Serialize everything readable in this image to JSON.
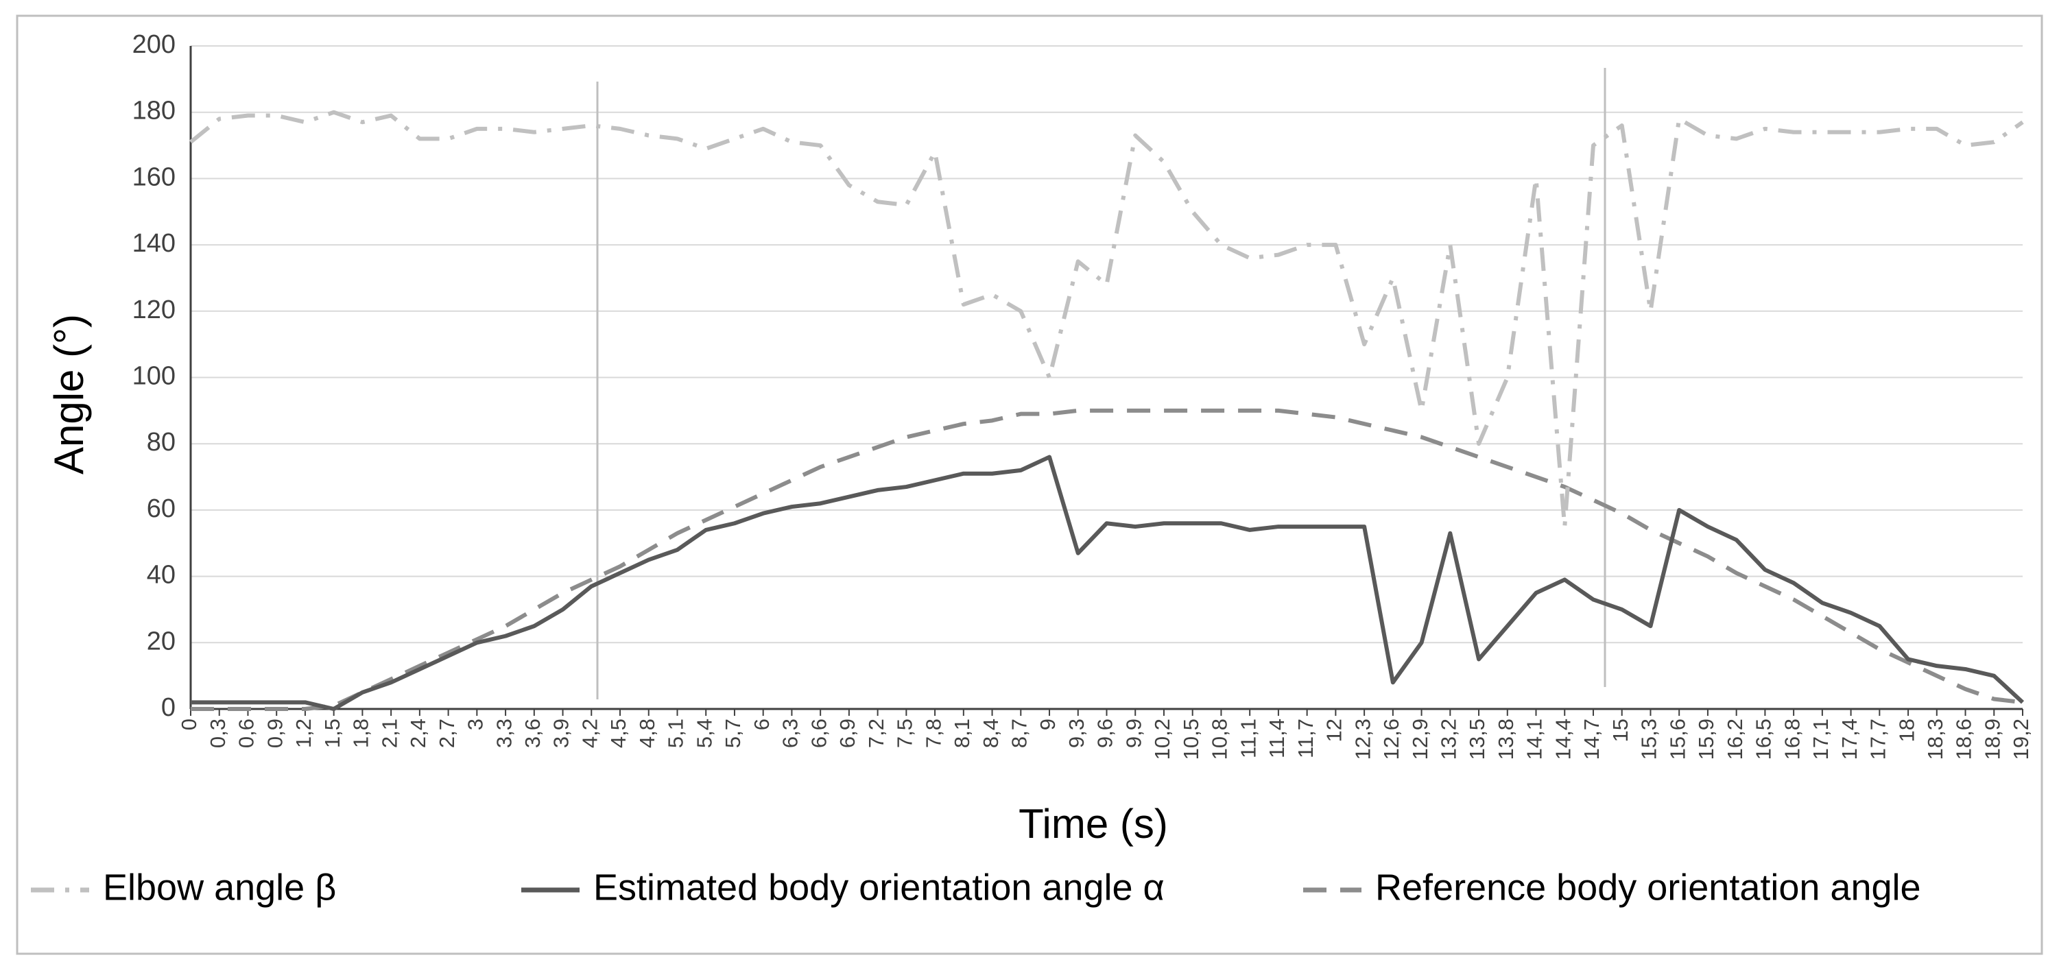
{
  "chart_data": {
    "type": "line",
    "y_label": "Angle (°)",
    "x_label": "Time (s)",
    "x": [
      0,
      0.3,
      0.6,
      0.9,
      1.2,
      1.5,
      1.8,
      2.1,
      2.4,
      2.7,
      3,
      3.3,
      3.6,
      3.9,
      4.2,
      4.5,
      4.8,
      5.1,
      5.4,
      5.7,
      6,
      6.3,
      6.6,
      6.9,
      7.2,
      7.5,
      7.8,
      8.1,
      8.4,
      8.7,
      9,
      9.3,
      9.6,
      9.9,
      10.2,
      10.5,
      10.8,
      11.1,
      11.4,
      11.7,
      12,
      12.3,
      12.6,
      12.9,
      13.2,
      13.5,
      13.8,
      14.1,
      14.4,
      14.7,
      15,
      15.3,
      15.6,
      15.9,
      16.2,
      16.5,
      16.8,
      17.1,
      17.4,
      17.7,
      18,
      18.3,
      18.6,
      18.9,
      19.2
    ],
    "series": [
      {
        "name": "Elbow angle β",
        "color": "#c0c0c0",
        "dash": "dashdot",
        "values": [
          171,
          178,
          179,
          179,
          177,
          180,
          177,
          179,
          172,
          172,
          175,
          175,
          174,
          175,
          176,
          175,
          173,
          172,
          169,
          172,
          175,
          171,
          170,
          158,
          153,
          152,
          168,
          122,
          125,
          120,
          100,
          135,
          128,
          173,
          165,
          150,
          140,
          136,
          137,
          140,
          140,
          110,
          130,
          90,
          140,
          80,
          100,
          160,
          55,
          170,
          176,
          120,
          178,
          173,
          172,
          175,
          174,
          174,
          174,
          174,
          175,
          175,
          170,
          171,
          177
        ]
      },
      {
        "name": "Estimated body orientation angle α",
        "color": "#595959",
        "dash": "solid",
        "values": [
          2,
          2,
          2,
          2,
          2,
          0,
          5,
          8,
          12,
          16,
          20,
          22,
          25,
          30,
          37,
          41,
          45,
          48,
          54,
          56,
          59,
          61,
          62,
          64,
          66,
          67,
          69,
          71,
          71,
          72,
          76,
          47,
          56,
          55,
          56,
          56,
          56,
          54,
          55,
          55,
          55,
          55,
          8,
          20,
          53,
          15,
          25,
          35,
          39,
          33,
          30,
          25,
          60,
          55,
          51,
          42,
          38,
          32,
          29,
          25,
          15,
          13,
          12,
          10,
          2
        ]
      },
      {
        "name": "Reference body orientation angle",
        "color": "#8c8c8c",
        "dash": "dashed",
        "values": [
          0,
          0,
          0,
          0,
          0,
          1,
          5,
          9,
          13,
          17,
          21,
          25,
          30,
          35,
          39,
          43,
          48,
          53,
          57,
          61,
          65,
          69,
          73,
          76,
          79,
          82,
          84,
          86,
          87,
          89,
          89,
          90,
          90,
          90,
          90,
          90,
          90,
          90,
          90,
          89,
          88,
          86,
          84,
          82,
          79,
          76,
          73,
          70,
          67,
          63,
          59,
          54,
          50,
          46,
          41,
          37,
          33,
          28,
          23,
          18,
          14,
          10,
          6,
          3,
          2
        ]
      }
    ],
    "xlim": [
      0,
      19.2
    ],
    "xticks": [
      {
        "value": 0,
        "label": "0"
      },
      {
        "value": 0.3,
        "label": "0,3"
      },
      {
        "value": 0.6,
        "label": "0,6"
      },
      {
        "value": 0.9,
        "label": "0,9"
      },
      {
        "value": 1.2,
        "label": "1,2"
      },
      {
        "value": 1.5,
        "label": "1,5"
      },
      {
        "value": 1.8,
        "label": "1,8"
      },
      {
        "value": 2.1,
        "label": "2,1"
      },
      {
        "value": 2.4,
        "label": "2,4"
      },
      {
        "value": 2.7,
        "label": "2,7"
      },
      {
        "value": 3,
        "label": "3"
      },
      {
        "value": 3.3,
        "label": "3,3"
      },
      {
        "value": 3.6,
        "label": "3,6"
      },
      {
        "value": 3.9,
        "label": "3,9"
      },
      {
        "value": 4.2,
        "label": "4,2"
      },
      {
        "value": 4.5,
        "label": "4,5"
      },
      {
        "value": 4.8,
        "label": "4,8"
      },
      {
        "value": 5.1,
        "label": "5,1"
      },
      {
        "value": 5.4,
        "label": "5,4"
      },
      {
        "value": 5.7,
        "label": "5,7"
      },
      {
        "value": 6,
        "label": "6"
      },
      {
        "value": 6.3,
        "label": "6,3"
      },
      {
        "value": 6.6,
        "label": "6,6"
      },
      {
        "value": 6.9,
        "label": "6,9"
      },
      {
        "value": 7.2,
        "label": "7,2"
      },
      {
        "value": 7.5,
        "label": "7,5"
      },
      {
        "value": 7.8,
        "label": "7,8"
      },
      {
        "value": 8.1,
        "label": "8,1"
      },
      {
        "value": 8.4,
        "label": "8,4"
      },
      {
        "value": 8.7,
        "label": "8,7"
      },
      {
        "value": 9,
        "label": "9"
      },
      {
        "value": 9.3,
        "label": "9,3"
      },
      {
        "value": 9.6,
        "label": "9,6"
      },
      {
        "value": 9.9,
        "label": "9,9"
      },
      {
        "value": 10.2,
        "label": "10,2"
      },
      {
        "value": 10.5,
        "label": "10,5"
      },
      {
        "value": 10.8,
        "label": "10,8"
      },
      {
        "value": 11.1,
        "label": "11,1"
      },
      {
        "value": 11.4,
        "label": "11,4"
      },
      {
        "value": 11.7,
        "label": "11,7"
      },
      {
        "value": 12,
        "label": "12"
      },
      {
        "value": 12.3,
        "label": "12,3"
      },
      {
        "value": 12.6,
        "label": "12,6"
      },
      {
        "value": 12.9,
        "label": "12,9"
      },
      {
        "value": 13.2,
        "label": "13,2"
      },
      {
        "value": 13.5,
        "label": "13,5"
      },
      {
        "value": 13.8,
        "label": "13,8"
      },
      {
        "value": 14.1,
        "label": "14,1"
      },
      {
        "value": 14.4,
        "label": "14,4"
      },
      {
        "value": 14.7,
        "label": "14,7"
      },
      {
        "value": 15,
        "label": "15"
      },
      {
        "value": 15.3,
        "label": "15,3"
      },
      {
        "value": 15.6,
        "label": "15,6"
      },
      {
        "value": 15.9,
        "label": "15,9"
      },
      {
        "value": 16.2,
        "label": "16,2"
      },
      {
        "value": 16.5,
        "label": "16,5"
      },
      {
        "value": 16.8,
        "label": "16,8"
      },
      {
        "value": 17.1,
        "label": "17,1"
      },
      {
        "value": 17.4,
        "label": "17,4"
      },
      {
        "value": 17.7,
        "label": "17,7"
      },
      {
        "value": 18,
        "label": "18"
      },
      {
        "value": 18.3,
        "label": "18,3"
      },
      {
        "value": 18.6,
        "label": "18,6"
      },
      {
        "value": 18.9,
        "label": "18,9"
      },
      {
        "value": 19.2,
        "label": "19,2"
      }
    ],
    "ylim": [
      0,
      200
    ],
    "yticks": [
      0,
      20,
      40,
      60,
      80,
      100,
      120,
      140,
      160,
      180,
      200
    ],
    "grid": true,
    "legend": "bottom"
  }
}
